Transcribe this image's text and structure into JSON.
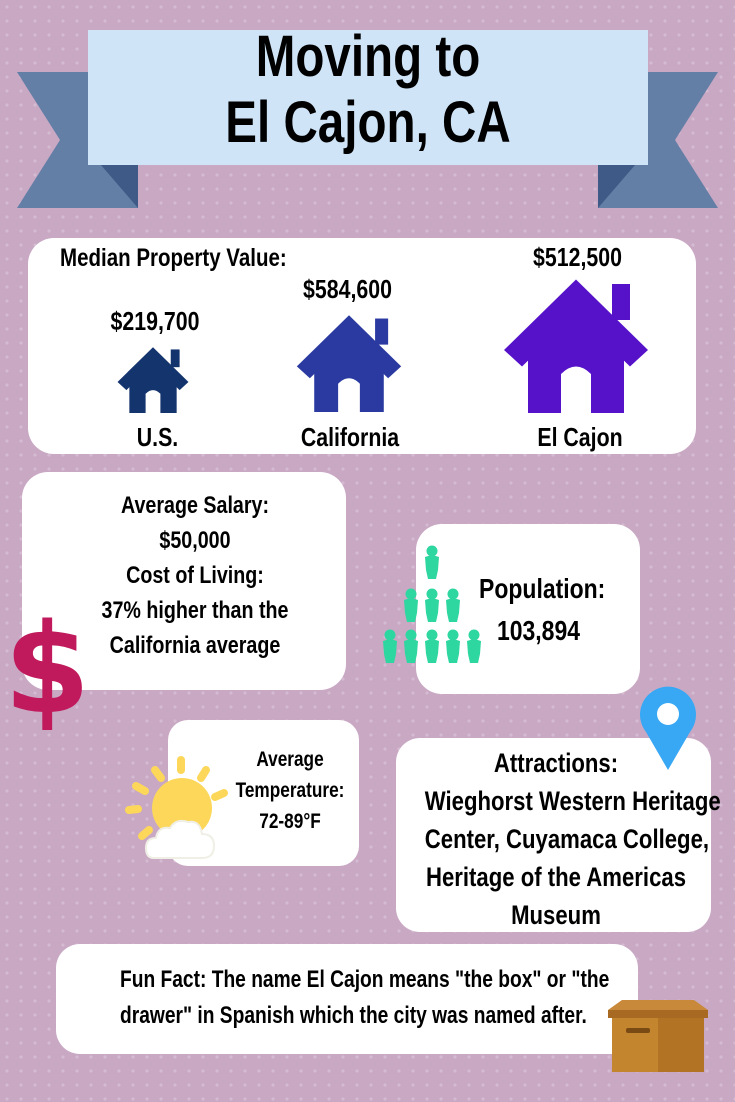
{
  "banner": {
    "title_line1": "Moving to",
    "title_line2": "El Cajon, CA"
  },
  "property": {
    "heading": "Median Property Value:",
    "items": [
      {
        "label": "U.S.",
        "value": "$219,700",
        "color": "#14346e"
      },
      {
        "label": "California",
        "value": "$584,600",
        "color": "#2a3aa0"
      },
      {
        "label": "El Cajon",
        "value": "$512,500",
        "color": "#5512c9"
      }
    ]
  },
  "salary": {
    "line1": "Average Salary:",
    "line2": "$50,000",
    "line3": "Cost of Living:",
    "line4": "37% higher than the",
    "line5": "California average",
    "icon": "dollar-sign-icon",
    "color": "#c01a5c"
  },
  "population": {
    "label": "Population:",
    "value": "103,894",
    "icon": "people-icon",
    "color": "#2ed6a0"
  },
  "temperature": {
    "line1": "Average",
    "line2": "Temperature:",
    "line3": "72-89°F",
    "icon": "sun-cloud-icon"
  },
  "attractions": {
    "heading": "Attractions:",
    "line1": "Wieghorst Western Heritage",
    "line2": "Center, Cuyamaca College,",
    "line3": "Heritage of the Americas",
    "line4": "Museum",
    "icon": "map-pin-icon",
    "color": "#38a8f4"
  },
  "fun_fact": {
    "line1": "Fun Fact: The name El Cajon means \"the box\" or \"the",
    "line2": "drawer\" in Spanish which the city was named after.",
    "icon": "box-icon"
  }
}
